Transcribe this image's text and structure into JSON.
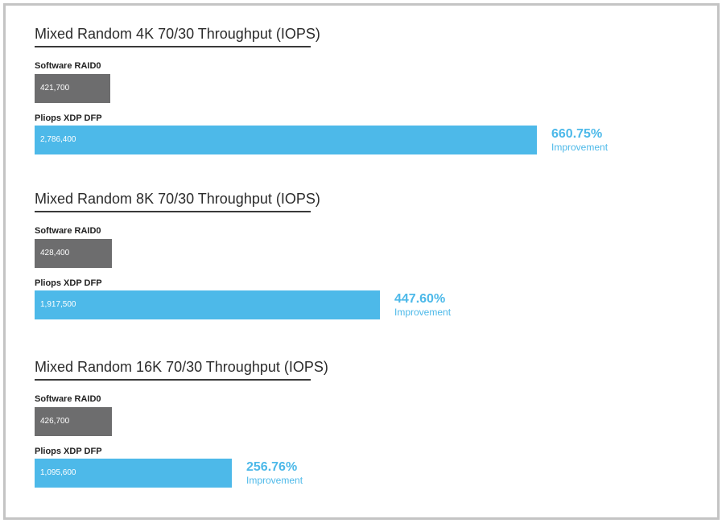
{
  "chart_data": [
    {
      "type": "bar",
      "title": "Mixed Random 4K 70/30 Throughput (IOPS)",
      "categories": [
        "Software RAID0",
        "Pliops XDP DFP"
      ],
      "values": [
        421700,
        2786400
      ],
      "value_labels": [
        "421,700",
        "2,786,400"
      ],
      "improvement": {
        "value": "660.75%",
        "label": "Improvement"
      }
    },
    {
      "type": "bar",
      "title": "Mixed Random 8K 70/30 Throughput (IOPS)",
      "categories": [
        "Software RAID0",
        "Pliops XDP DFP"
      ],
      "values": [
        428400,
        1917500
      ],
      "value_labels": [
        "428,400",
        "1,917,500"
      ],
      "improvement": {
        "value": "447.60%",
        "label": "Improvement"
      }
    },
    {
      "type": "bar",
      "title": "Mixed Random 16K 70/30 Throughput (IOPS)",
      "categories": [
        "Software RAID0",
        "Pliops XDP DFP"
      ],
      "values": [
        426700,
        1095600
      ],
      "value_labels": [
        "426,700",
        "1,095,600"
      ],
      "improvement": {
        "value": "256.76%",
        "label": "Improvement"
      }
    }
  ],
  "colors": {
    "baseline": "#6d6d6e",
    "highlight": "#4db9e9",
    "improvement_text": "#4db9e9"
  }
}
